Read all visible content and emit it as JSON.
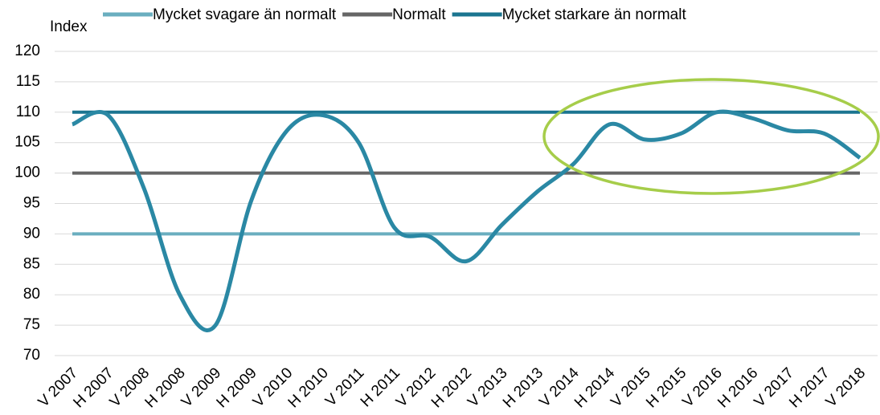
{
  "chart_data": {
    "type": "line",
    "y_label": "Index",
    "categories": [
      "V 2007",
      "H 2007",
      "V 2008",
      "H 2008",
      "V 2009",
      "H 2009",
      "V 2010",
      "H 2010",
      "V 2011",
      "H 2011",
      "V 2012",
      "H 2012",
      "V 2013",
      "H 2013",
      "V 2014",
      "H 2014",
      "V 2015",
      "H 2015",
      "V 2016",
      "H 2016",
      "V 2017",
      "H 2017",
      "V 2018"
    ],
    "series": [
      {
        "name": "Mycket svagare än normalt",
        "color": "#6aaebf",
        "values": [
          90,
          90,
          90,
          90,
          90,
          90,
          90,
          90,
          90,
          90,
          90,
          90,
          90,
          90,
          90,
          90,
          90,
          90,
          90,
          90,
          90,
          90,
          90
        ]
      },
      {
        "name": "Normalt",
        "color": "#666666",
        "values": [
          100,
          100,
          100,
          100,
          100,
          100,
          100,
          100,
          100,
          100,
          100,
          100,
          100,
          100,
          100,
          100,
          100,
          100,
          100,
          100,
          100,
          100,
          100
        ]
      },
      {
        "name": "Mycket starkare än normalt",
        "color": "#1b7590",
        "values": [
          110,
          110,
          110,
          110,
          110,
          110,
          110,
          110,
          110,
          110,
          110,
          110,
          110,
          110,
          110,
          110,
          110,
          110,
          110,
          110,
          110,
          110,
          110
        ]
      },
      {
        "color": "#2a88a4",
        "values": [
          108,
          109.5,
          97.5,
          80,
          75,
          95.5,
          107,
          109.5,
          105,
          91,
          89.5,
          85.5,
          91.5,
          97,
          101.5,
          108,
          105.5,
          106.5,
          110,
          109,
          107,
          106.5,
          102.5
        ]
      }
    ],
    "ylim": [
      70,
      120
    ],
    "yticks": [
      70,
      75,
      80,
      85,
      90,
      95,
      100,
      105,
      110,
      115,
      120
    ],
    "grid": true
  }
}
